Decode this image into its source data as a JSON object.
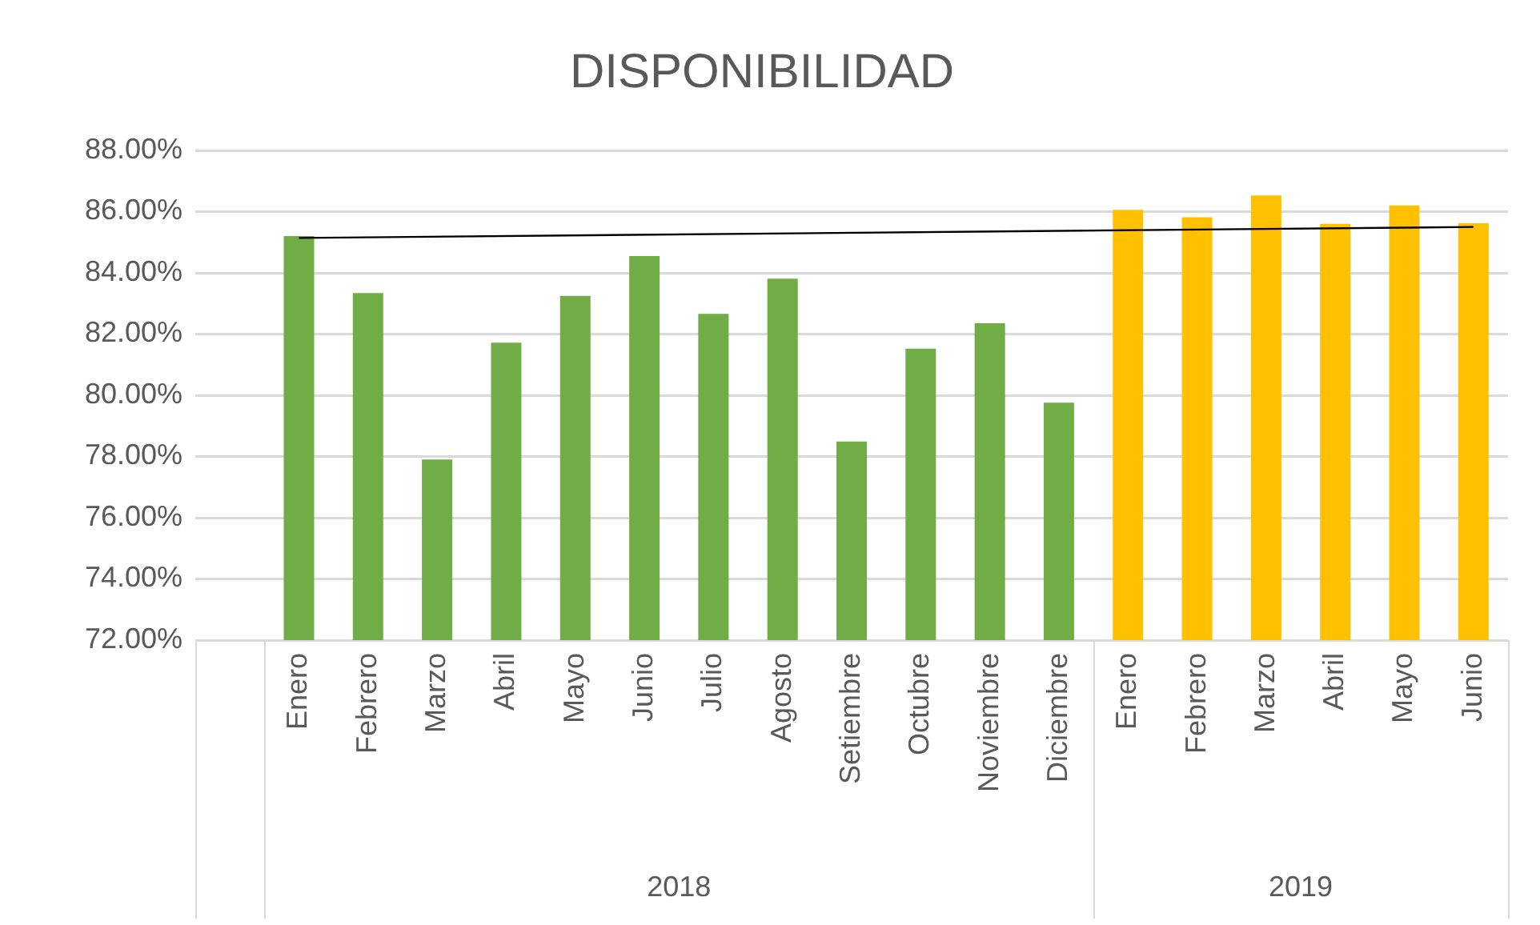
{
  "chart_data": {
    "type": "bar",
    "title": "DISPONIBILIDAD",
    "categories": [
      null,
      "Enero",
      "Febrero",
      "Marzo",
      "Abril",
      "Mayo",
      "Junio",
      "Julio",
      "Agosto",
      "Setiembre",
      "Octubre",
      "Noviembre",
      "Diciembre",
      "Enero",
      "Febrero",
      "Marzo",
      "Abril",
      "Mayo",
      "Junio"
    ],
    "series": [
      {
        "values": [
          null,
          85.2,
          83.34,
          77.9,
          81.72,
          83.25,
          84.55,
          82.66,
          83.81,
          78.49,
          81.52,
          82.35,
          79.76,
          86.06,
          85.82,
          86.53,
          85.6,
          86.2,
          85.62
        ],
        "colors": [
          "#70ad47",
          "#70ad47",
          "#70ad47",
          "#70ad47",
          "#70ad47",
          "#70ad47",
          "#70ad47",
          "#70ad47",
          "#70ad47",
          "#70ad47",
          "#70ad47",
          "#70ad47",
          "#70ad47",
          "#ffc000",
          "#ffc000",
          "#ffc000",
          "#ffc000",
          "#ffc000",
          "#ffc000"
        ]
      },
      {
        "type": "line",
        "color": "#000000",
        "values": [
          null,
          85.14,
          null,
          null,
          null,
          null,
          null,
          null,
          null,
          null,
          null,
          null,
          null,
          null,
          null,
          null,
          null,
          null,
          85.5
        ]
      }
    ],
    "annotations": [
      "2018",
      "2019"
    ],
    "ylim": [
      72,
      88
    ],
    "yticks": [
      {
        "value": 72,
        "label": "72.00%"
      },
      {
        "value": 74,
        "label": "74.00%"
      },
      {
        "value": 76,
        "label": "76.00%"
      },
      {
        "value": 78,
        "label": "78.00%"
      },
      {
        "value": 80,
        "label": "80.00%"
      },
      {
        "value": 82,
        "label": "82.00%"
      },
      {
        "value": 84,
        "label": "84.00%"
      },
      {
        "value": 86,
        "label": "86.00%"
      },
      {
        "value": 88,
        "label": "88.00%"
      }
    ],
    "grid": "y",
    "legend": false,
    "marker": "none",
    "line_style": "solid"
  }
}
